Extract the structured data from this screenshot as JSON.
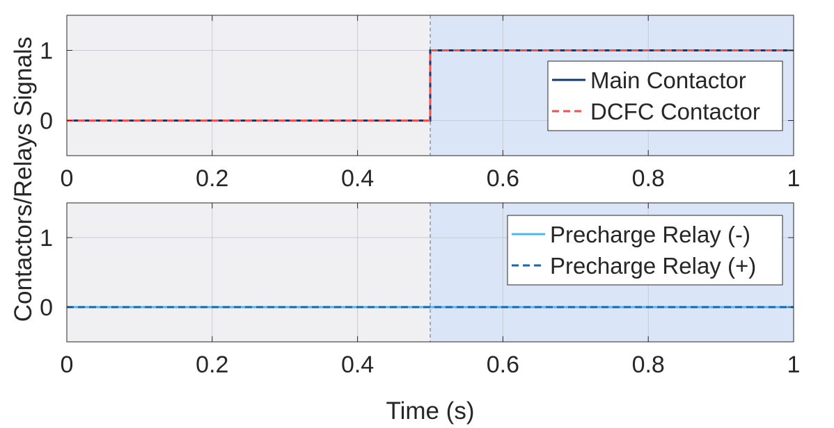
{
  "chart_data": [
    {
      "type": "line",
      "title": "",
      "xlabel": "",
      "ylabel": "Contactors/Relays Signals",
      "xlim": [
        0,
        1
      ],
      "ylim": [
        -0.5,
        1.5
      ],
      "xticks": [
        "0",
        "0.2",
        "0.4",
        "0.6",
        "0.8",
        "1"
      ],
      "yticks": [
        "0",
        "1"
      ],
      "grid": true,
      "legend_position": "right",
      "shaded_regions": [
        {
          "x_from": 0,
          "x_to": 0.5,
          "color": "#f0f0f2"
        },
        {
          "x_from": 0.5,
          "x_to": 1,
          "color": "#dae6f7"
        }
      ],
      "vertical_marker_x": 0.5,
      "series": [
        {
          "name": "Main Contactor",
          "color": "#0e3a73",
          "style": "solid",
          "x": [
            0,
            0.5,
            0.5,
            1
          ],
          "y": [
            0,
            0,
            1,
            1
          ]
        },
        {
          "name": "DCFC Contactor",
          "color": "#f0524a",
          "style": "dashed",
          "x": [
            0,
            0.5,
            0.5,
            1
          ],
          "y": [
            0,
            0,
            1,
            1
          ]
        }
      ]
    },
    {
      "type": "line",
      "title": "",
      "xlabel": "Time (s)",
      "ylabel": "Contactors/Relays Signals",
      "xlim": [
        0,
        1
      ],
      "ylim": [
        -0.5,
        1.5
      ],
      "xticks": [
        "0",
        "0.2",
        "0.4",
        "0.6",
        "0.8",
        "1"
      ],
      "yticks": [
        "0",
        "1"
      ],
      "grid": true,
      "legend_position": "right",
      "shaded_regions": [
        {
          "x_from": 0,
          "x_to": 0.5,
          "color": "#f0f0f2"
        },
        {
          "x_from": 0.5,
          "x_to": 1,
          "color": "#dae6f7"
        }
      ],
      "vertical_marker_x": 0.5,
      "series": [
        {
          "name": "Precharge Relay (-)",
          "color": "#4db8f0",
          "style": "solid",
          "x": [
            0,
            1
          ],
          "y": [
            0,
            0
          ]
        },
        {
          "name": "Precharge Relay (+)",
          "color": "#1565b0",
          "style": "dashed",
          "x": [
            0,
            1
          ],
          "y": [
            0,
            0
          ]
        }
      ]
    }
  ]
}
